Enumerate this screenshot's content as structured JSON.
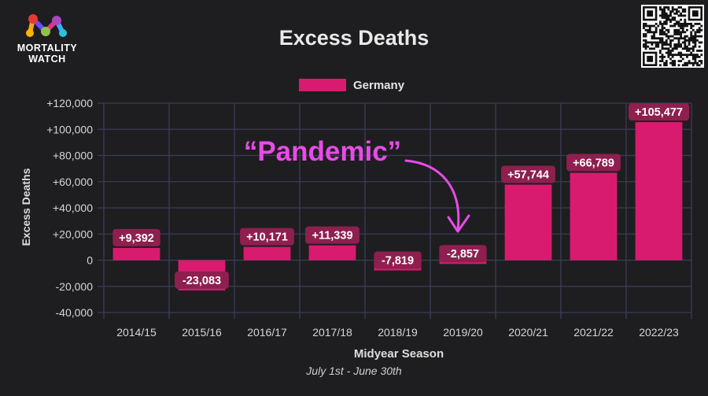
{
  "logo": {
    "line1": "MORTALITY",
    "line2": "WATCH"
  },
  "header": {
    "title": "Excess Deaths"
  },
  "legend": {
    "label": "Germany",
    "color": "#d81b6f"
  },
  "annotation": {
    "text": "“Pandemic”",
    "color": "#e84be8"
  },
  "footer": {
    "subtitle": "July 1st - June 30th"
  },
  "colors": {
    "bar": "#d81b6f",
    "label_bg": "#8e1f4f",
    "grid": "#3a3c58"
  },
  "chart_data": {
    "type": "bar",
    "title": "Excess Deaths",
    "xlabel": "Midyear Season",
    "ylabel": "Excess Deaths",
    "categories": [
      "2014/15",
      "2015/16",
      "2016/17",
      "2017/18",
      "2018/19",
      "2019/20",
      "2020/21",
      "2021/22",
      "2022/23"
    ],
    "series": [
      {
        "name": "Germany",
        "values": [
          9392,
          -23083,
          10171,
          11339,
          -7819,
          -2857,
          57744,
          66789,
          105477
        ],
        "labels": [
          "+9,392",
          "-23,083",
          "+10,171",
          "+11,339",
          "-7,819",
          "-2,857",
          "+57,744",
          "+66,789",
          "+105,477"
        ]
      }
    ],
    "ylim": [
      -40000,
      120000
    ],
    "yticks": [
      120000,
      100000,
      80000,
      60000,
      40000,
      20000,
      0,
      -20000,
      -40000
    ],
    "ytick_labels": [
      "+120,000",
      "+100,000",
      "+80,000",
      "+60,000",
      "+40,000",
      "+20,000",
      "0",
      "-20,000",
      "-40,000"
    ],
    "grid": true,
    "legend_position": "top"
  }
}
